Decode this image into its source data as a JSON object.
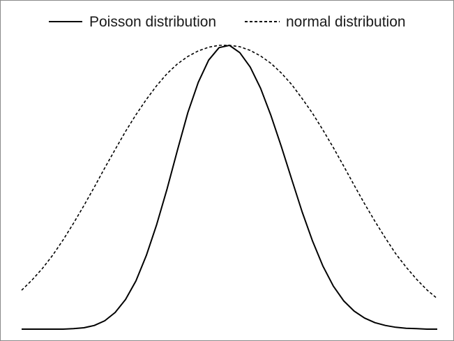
{
  "chart_data": {
    "type": "line",
    "title": "",
    "xlabel": "",
    "ylabel": "",
    "grid": false,
    "legend_placement": "top",
    "xlim": [
      0,
      40
    ],
    "ylim": [
      0,
      1.0
    ],
    "x": [
      0,
      1,
      2,
      3,
      4,
      5,
      6,
      7,
      8,
      9,
      10,
      11,
      12,
      13,
      14,
      15,
      16,
      17,
      18,
      19,
      20,
      21,
      22,
      23,
      24,
      25,
      26,
      27,
      28,
      29,
      30,
      31,
      32,
      33,
      34,
      35,
      36,
      37,
      38,
      39,
      40
    ],
    "series": [
      {
        "name": "Poisson distribution",
        "style": "solid",
        "color": "#000000",
        "values": [
          0.0,
          0.0,
          0.0,
          0.0,
          0.0,
          0.001,
          0.003,
          0.008,
          0.018,
          0.036,
          0.064,
          0.104,
          0.159,
          0.226,
          0.303,
          0.387,
          0.468,
          0.533,
          0.581,
          0.608,
          0.613,
          0.597,
          0.566,
          0.52,
          0.461,
          0.394,
          0.323,
          0.253,
          0.19,
          0.136,
          0.093,
          0.061,
          0.039,
          0.024,
          0.014,
          0.008,
          0.004,
          0.002,
          0.001,
          0.0,
          0.0
        ]
      },
      {
        "name": "normal distribution",
        "style": "dashed",
        "color": "#000000",
        "values": [
          0.084,
          0.106,
          0.131,
          0.16,
          0.193,
          0.229,
          0.267,
          0.307,
          0.348,
          0.388,
          0.427,
          0.463,
          0.496,
          0.526,
          0.552,
          0.573,
          0.589,
          0.601,
          0.609,
          0.613,
          0.613,
          0.61,
          0.602,
          0.59,
          0.574,
          0.553,
          0.528,
          0.498,
          0.466,
          0.43,
          0.392,
          0.352,
          0.311,
          0.271,
          0.233,
          0.197,
          0.163,
          0.134,
          0.108,
          0.085,
          0.066
        ]
      }
    ]
  }
}
